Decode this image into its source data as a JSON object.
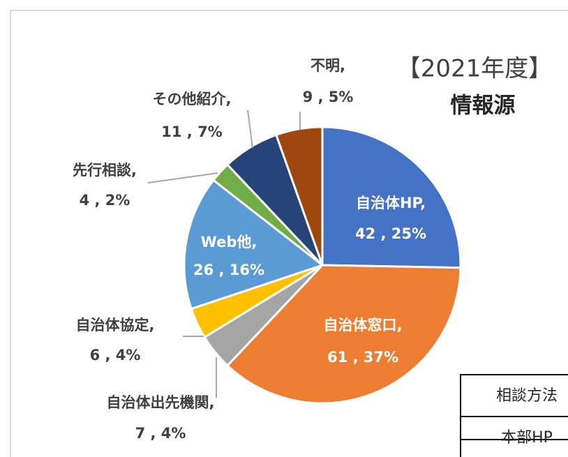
{
  "chart_data": {
    "type": "pie",
    "title": "【2021年度】",
    "subtitle": "情報源",
    "categories": [
      "自治体HP,",
      "自治体窓口,",
      "自治体出先機関,",
      "自治体協定,",
      "Web他,",
      "先行相談,",
      "その他紹介,",
      "不明,"
    ],
    "values": [
      42,
      61,
      7,
      6,
      26,
      4,
      11,
      9
    ],
    "percents": [
      25,
      37,
      4,
      4,
      16,
      2,
      7,
      5
    ],
    "value_labels": [
      "42 , 25%",
      "61 , 37%",
      "7 , 4%",
      "6 , 4%",
      "26 , 16%",
      "4 , 2%",
      "11 , 7%",
      "9 , 5%"
    ],
    "colors": [
      "#4472c4",
      "#ed7d31",
      "#a5a5a5",
      "#ffc000",
      "#5b9bd5",
      "#70ad47",
      "#264478",
      "#9e480e"
    ]
  },
  "table": {
    "rows": [
      [
        "相談方法"
      ],
      [
        "本部HP"
      ]
    ]
  }
}
